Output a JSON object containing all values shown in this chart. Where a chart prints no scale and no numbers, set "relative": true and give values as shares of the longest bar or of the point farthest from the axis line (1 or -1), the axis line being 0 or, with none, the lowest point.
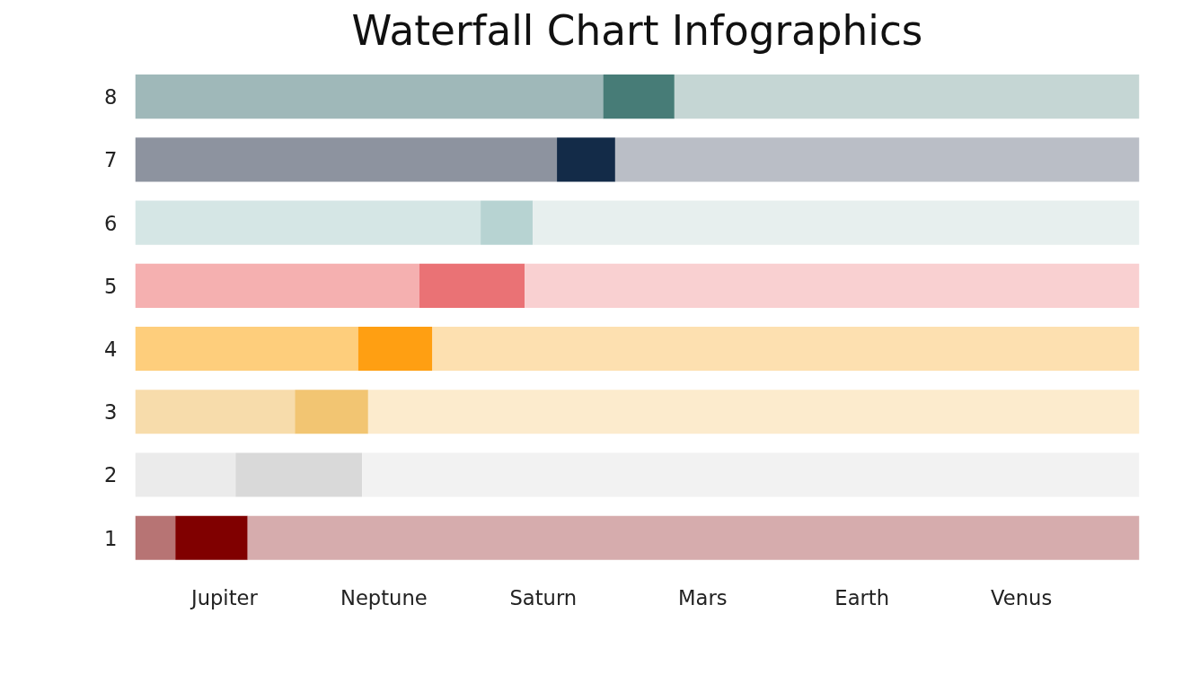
{
  "chart_data": {
    "type": "bar",
    "title": "Waterfall Chart Infographics",
    "orientation": "horizontal",
    "stacked": true,
    "relative": true,
    "grid": false,
    "categories": [
      "8",
      "7",
      "6",
      "5",
      "4",
      "3",
      "2",
      "1"
    ],
    "annotations": [
      "Jupiter",
      "Neptune",
      "Saturn",
      "Mars",
      "Earth",
      "Venus"
    ],
    "series": [
      {
        "values": [
          0.466,
          0.42,
          0.344,
          0.283,
          0.222,
          0.159,
          0.1,
          0.04
        ],
        "colors": [
          "#9fb8b9",
          "#8d939f",
          "#d5e6e5",
          "#f5b0b0",
          "#fece7c",
          "#f7dcab",
          "#ebebeb",
          "#b77474"
        ]
      },
      {
        "values": [
          0.071,
          0.058,
          0.052,
          0.105,
          0.074,
          0.073,
          0.126,
          0.072
        ],
        "colors": [
          "#477c77",
          "#132b48",
          "#b7d3d2",
          "#ea7275",
          "#ff9f12",
          "#f2c572",
          "#d9d9d9",
          "#800000"
        ]
      },
      {
        "values": [
          0.463,
          0.522,
          0.604,
          0.612,
          0.704,
          0.768,
          0.774,
          0.888
        ],
        "colors": [
          "#c5d6d4",
          "#babec6",
          "#e7efee",
          "#f9d0d1",
          "#fde0b0",
          "#fcebcd",
          "#f2f2f2",
          "#d6acad"
        ]
      }
    ]
  }
}
